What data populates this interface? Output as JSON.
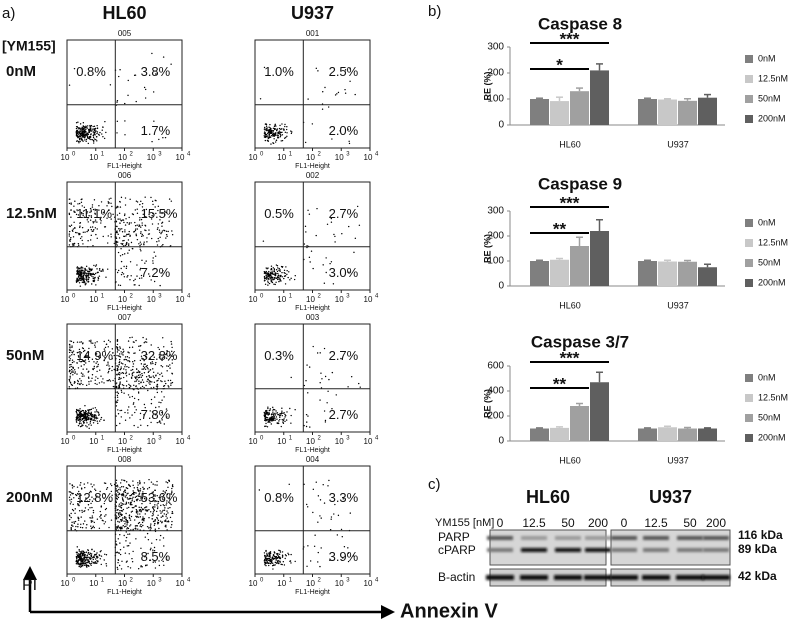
{
  "panel_a": {
    "label": "a)",
    "treatment_label": "[YM155]",
    "columns": [
      "HL60",
      "U937"
    ],
    "rows": [
      "0nM",
      "12.5nM",
      "50nM",
      "200nM"
    ],
    "plots": [
      [
        {
          "id": "005",
          "upper_left": "0.8%",
          "upper_right": "3.8%",
          "lower_right": "1.7%"
        },
        {
          "id": "001",
          "upper_left": "1.0%",
          "upper_right": "2.5%",
          "lower_right": "2.0%"
        }
      ],
      [
        {
          "id": "006",
          "upper_left": "11.1%",
          "upper_right": "15.5%",
          "lower_right": "7.2%"
        },
        {
          "id": "002",
          "upper_left": "0.5%",
          "upper_right": "2.7%",
          "lower_right": "3.0%"
        }
      ],
      [
        {
          "id": "007",
          "upper_left": "14.9%",
          "upper_right": "32.8%",
          "lower_right": "7.8%"
        },
        {
          "id": "003",
          "upper_left": "0.3%",
          "upper_right": "2.7%",
          "lower_right": "2.7%"
        }
      ],
      [
        {
          "id": "008",
          "upper_left": "12.8%",
          "upper_right": "53.6%",
          "lower_right": "8.5%"
        },
        {
          "id": "004",
          "upper_left": "0.8%",
          "upper_right": "3.3%",
          "lower_right": "3.9%"
        }
      ]
    ],
    "x_axis_label": "FL1-Height",
    "tick_base": "10",
    "tick_exponents": [
      0,
      1,
      2,
      3,
      4
    ],
    "y_axis_title": "PI",
    "x_axis_title": "Annexin V"
  },
  "panel_b_label": "b)",
  "chart_data": [
    {
      "type": "bar",
      "title": "Caspase 8",
      "ylabel": "RE (%)",
      "categories": [
        "HL60",
        "U937"
      ],
      "series": [
        {
          "name": "0nM",
          "color": "#7f7f7f",
          "values": [
            100,
            100
          ],
          "errors": [
            3,
            3
          ]
        },
        {
          "name": "12.5nM",
          "color": "#c8c8c8",
          "values": [
            92,
            98
          ],
          "errors": [
            15,
            3
          ]
        },
        {
          "name": "50nM",
          "color": "#a0a0a0",
          "values": [
            130,
            93
          ],
          "errors": [
            12,
            8
          ]
        },
        {
          "name": "200nM",
          "color": "#5f5f5f",
          "values": [
            210,
            105
          ],
          "errors": [
            25,
            12
          ]
        }
      ],
      "ylim": [
        0,
        300
      ],
      "yticks": [
        0,
        100,
        200,
        300
      ],
      "significance": [
        "***",
        "*"
      ]
    },
    {
      "type": "bar",
      "title": "Caspase 9",
      "ylabel": "RE (%)",
      "categories": [
        "HL60",
        "U937"
      ],
      "series": [
        {
          "name": "0nM",
          "color": "#7f7f7f",
          "values": [
            100,
            100
          ],
          "errors": [
            3,
            3
          ]
        },
        {
          "name": "12.5nM",
          "color": "#c8c8c8",
          "values": [
            105,
            98
          ],
          "errors": [
            5,
            5
          ]
        },
        {
          "name": "50nM",
          "color": "#a0a0a0",
          "values": [
            160,
            97
          ],
          "errors": [
            35,
            5
          ]
        },
        {
          "name": "200nM",
          "color": "#5f5f5f",
          "values": [
            220,
            75
          ],
          "errors": [
            45,
            12
          ]
        }
      ],
      "ylim": [
        0,
        300
      ],
      "yticks": [
        0,
        100,
        200,
        300
      ],
      "significance": [
        "***",
        "**"
      ]
    },
    {
      "type": "bar",
      "title": "Caspase 3/7",
      "ylabel": "RE (%)",
      "categories": [
        "HL60",
        "U937"
      ],
      "series": [
        {
          "name": "0nM",
          "color": "#7f7f7f",
          "values": [
            100,
            100
          ],
          "errors": [
            5,
            5
          ]
        },
        {
          "name": "12.5nM",
          "color": "#c8c8c8",
          "values": [
            105,
            110
          ],
          "errors": [
            8,
            8
          ]
        },
        {
          "name": "50nM",
          "color": "#a0a0a0",
          "values": [
            280,
            100
          ],
          "errors": [
            20,
            8
          ]
        },
        {
          "name": "200nM",
          "color": "#5f5f5f",
          "values": [
            470,
            100
          ],
          "errors": [
            80,
            5
          ]
        }
      ],
      "ylim": [
        0,
        600
      ],
      "yticks": [
        0,
        200,
        400,
        600
      ],
      "significance": [
        "***",
        "**"
      ]
    }
  ],
  "panel_c": {
    "label": "c)",
    "cell_lines": [
      "HL60",
      "U937"
    ],
    "dose_label": "YM155 [nM]",
    "lanes": [
      [
        "0",
        "12.5",
        "50",
        "200"
      ],
      [
        "0",
        "12.5",
        "50",
        "200"
      ]
    ],
    "proteins": [
      "PARP",
      "cPARP",
      "B-actin"
    ],
    "sizes": [
      "116 kDa",
      "89 kDa",
      "42 kDa"
    ]
  }
}
